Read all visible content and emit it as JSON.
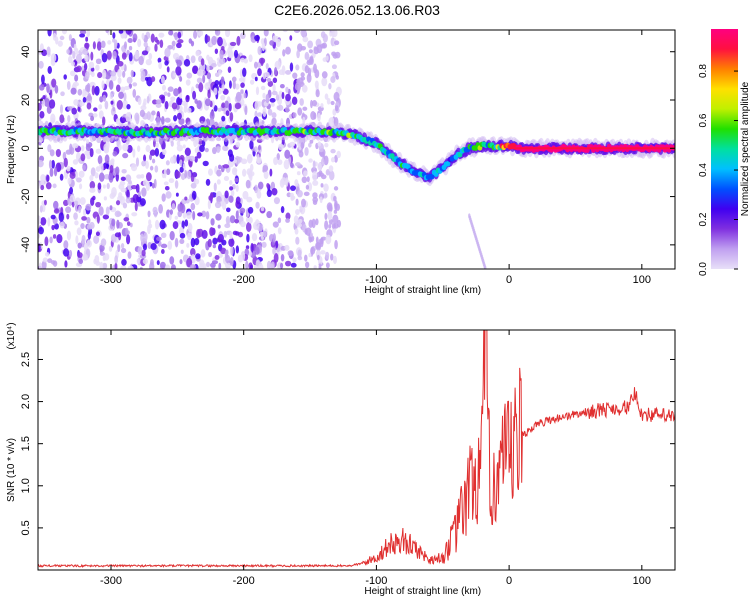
{
  "title": "C2E6.2026.052.13.06.R03",
  "chart_data": [
    {
      "type": "heatmap",
      "xlabel": "Height of straight line (km)",
      "ylabel": "Frequency (Hz)",
      "xlim": [
        -355,
        125
      ],
      "ylim": [
        -50,
        49
      ],
      "xticks": [
        -300,
        -200,
        -100,
        0,
        100
      ],
      "yticks": [
        -40,
        -20,
        0,
        20,
        40
      ],
      "colorbar": {
        "label": "Normalized spectral amplitude",
        "range": [
          0.0,
          0.97
        ],
        "ticks": [
          0.0,
          0.2,
          0.4,
          0.6,
          0.8
        ],
        "colors": [
          "#e8e0f8",
          "#c0a0f0",
          "#8030e0",
          "#4000f0",
          "#0050ff",
          "#00c0ff",
          "#00e0a0",
          "#20e000",
          "#c0f000",
          "#ffe000",
          "#ff8000",
          "#ff1040",
          "#ff0080"
        ]
      },
      "ridge": {
        "x": [
          -355,
          -320,
          -280,
          -240,
          -200,
          -160,
          -140,
          -120,
          -100,
          -85,
          -70,
          -60,
          -50,
          -40,
          -30,
          -20,
          -10,
          0,
          10,
          50,
          90,
          125
        ],
        "y": [
          7,
          7,
          6.5,
          7,
          7,
          7,
          7,
          6,
          2,
          -5,
          -10,
          -12,
          -8,
          -3,
          0,
          1,
          1,
          1,
          0,
          0,
          0,
          0
        ],
        "value": [
          0.55,
          0.55,
          0.55,
          0.55,
          0.55,
          0.55,
          0.6,
          0.6,
          0.5,
          0.5,
          0.5,
          0.5,
          0.5,
          0.45,
          0.5,
          0.6,
          0.7,
          0.9,
          0.95,
          0.95,
          0.95,
          0.95
        ]
      }
    },
    {
      "type": "line",
      "xlabel": "Height of straight line (km)",
      "ylabel": "SNR (10 * v/v)",
      "yscale_label": "(x10⁴)",
      "xlim": [
        -355,
        125
      ],
      "ylim": [
        0,
        2.85
      ],
      "xticks": [
        -300,
        -200,
        -100,
        0,
        100
      ],
      "yticks": [
        0.5,
        1.0,
        1.5,
        2.0,
        2.5
      ],
      "series": [
        {
          "color": "#e03030",
          "x": [
            -355,
            -300,
            -200,
            -120,
            -110,
            -100,
            -90,
            -80,
            -70,
            -60,
            -50,
            -40,
            -35,
            -30,
            -25,
            -20,
            -18,
            -15,
            -10,
            -5,
            0,
            5,
            10,
            20,
            30,
            40,
            50,
            60,
            70,
            80,
            90,
            95,
            100,
            110,
            125
          ],
          "y": [
            0.05,
            0.05,
            0.05,
            0.05,
            0.08,
            0.15,
            0.3,
            0.35,
            0.25,
            0.12,
            0.15,
            0.45,
            0.7,
            0.95,
            1.1,
            1.3,
            2.85,
            1.2,
            1.1,
            1.2,
            1.3,
            1.45,
            1.6,
            1.72,
            1.78,
            1.82,
            1.85,
            1.88,
            1.9,
            1.92,
            1.93,
            2.1,
            1.85,
            1.84,
            1.82
          ]
        }
      ]
    }
  ]
}
